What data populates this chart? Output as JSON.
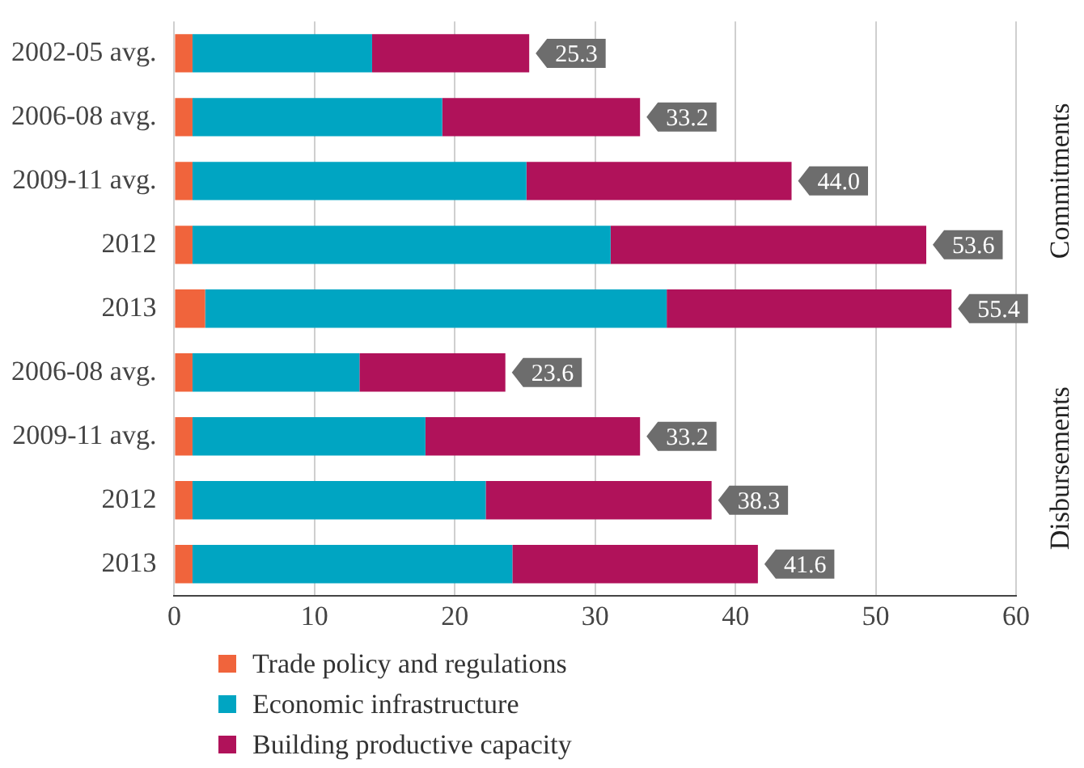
{
  "chart_data": {
    "type": "bar",
    "orientation": "horizontal",
    "stacked": true,
    "categories": [
      "2002-05 avg.",
      "2006-08 avg.",
      "2009-11 avg.",
      "2012",
      "2013",
      "2006-08 avg.",
      "2009-11 avg.",
      "2012",
      "2013"
    ],
    "series": [
      {
        "name": "Trade policy and regulations",
        "color": "#f0643c",
        "values": [
          1.3,
          1.3,
          1.3,
          1.3,
          2.2,
          1.3,
          1.3,
          1.3,
          1.3
        ]
      },
      {
        "name": "Economic infrastructure",
        "color": "#00a5c2",
        "values": [
          12.8,
          17.8,
          23.8,
          29.8,
          32.9,
          11.9,
          16.6,
          20.9,
          22.8
        ]
      },
      {
        "name": "Building productive capacity",
        "color": "#b0125a",
        "values": [
          11.2,
          14.1,
          18.9,
          22.5,
          20.3,
          10.4,
          15.3,
          16.1,
          17.5
        ]
      }
    ],
    "totals": [
      "25.3",
      "33.2",
      "44.0",
      "53.6",
      "55.4",
      "23.6",
      "33.2",
      "38.3",
      "41.6"
    ],
    "annotations": [
      "Commitments",
      "Disbursements"
    ],
    "xlim": [
      0,
      60
    ],
    "xticks": [
      0,
      10,
      20,
      30,
      40,
      50,
      60
    ],
    "grid": "x",
    "legend": "bottom"
  }
}
